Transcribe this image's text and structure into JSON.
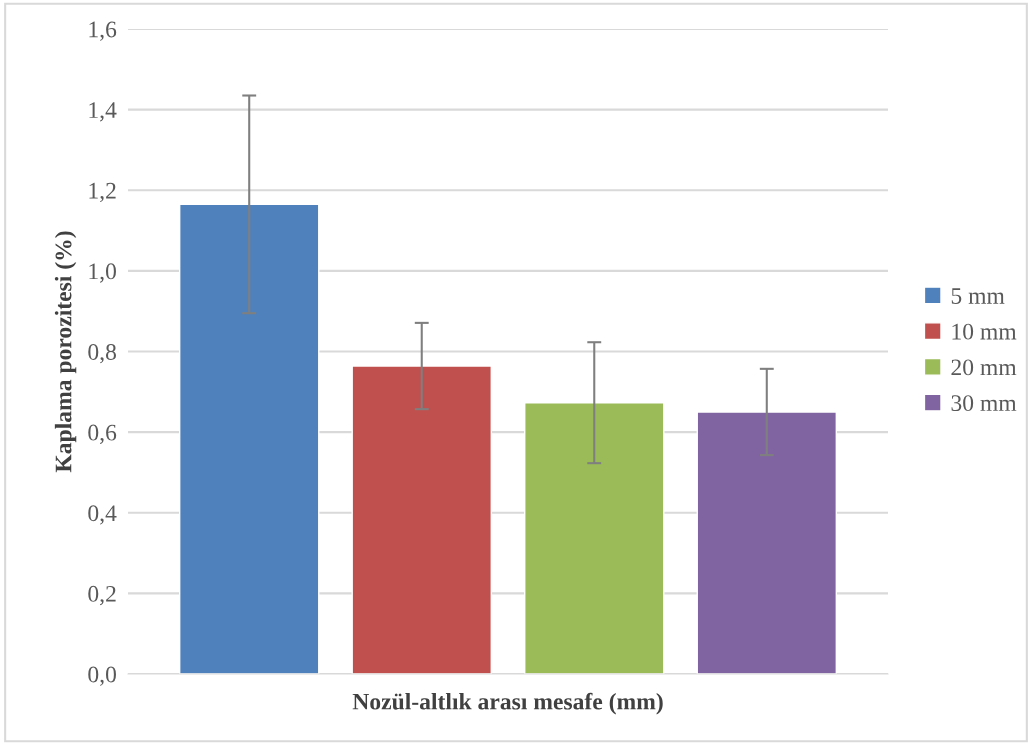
{
  "chart_data": {
    "type": "bar",
    "xlabel": "Nozül-altlık arası mesafe (mm)",
    "ylabel": "Kaplama porozitesi (%)",
    "categories": [
      null
    ],
    "series": [
      {
        "name": "5 mm",
        "color": "#4f81bd",
        "values": [
          1.165
        ],
        "errors": [
          0.27
        ]
      },
      {
        "name": "10 mm",
        "color": "#c0504d",
        "values": [
          0.764
        ],
        "errors": [
          0.107
        ]
      },
      {
        "name": "20 mm",
        "color": "#9bbb59",
        "values": [
          0.673
        ],
        "errors": [
          0.15
        ]
      },
      {
        "name": "30 mm",
        "color": "#8064a2",
        "values": [
          0.65
        ],
        "errors": [
          0.107
        ]
      }
    ],
    "ylim": [
      0,
      1.6
    ],
    "yticks": [
      {
        "value": 0,
        "label": "0,0"
      },
      {
        "value": 0.2,
        "label": "0,2"
      },
      {
        "value": 0.4,
        "label": "0,4"
      },
      {
        "value": 0.6,
        "label": "0,6"
      },
      {
        "value": 0.8,
        "label": "0,8"
      },
      {
        "value": 1.0,
        "label": "1,0"
      },
      {
        "value": 1.2,
        "label": "1,2"
      },
      {
        "value": 1.4,
        "label": "1,4"
      },
      {
        "value": 1.6,
        "label": "1,6"
      }
    ],
    "grid": "y",
    "legend": "right"
  }
}
